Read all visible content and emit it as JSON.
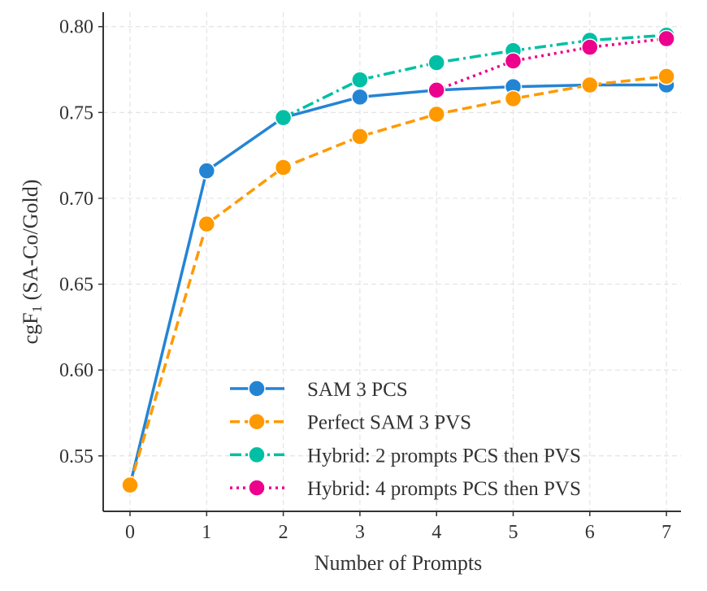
{
  "chart_data": {
    "type": "line",
    "title": "",
    "xlabel": "Number of Prompts",
    "ylabel_main": "cgF",
    "ylabel_sub": "1",
    "ylabel_rest": " (SA-Co/Gold)",
    "xlim": [
      -0.35,
      7.19
    ],
    "ylim": [
      0.5177,
      0.8084
    ],
    "xticks": [
      0,
      1,
      2,
      3,
      4,
      5,
      6,
      7
    ],
    "yticks": [
      0.55,
      0.6,
      0.65,
      0.7,
      0.75,
      0.8
    ],
    "ytick_labels": [
      "0.55",
      "0.60",
      "0.65",
      "0.70",
      "0.75",
      "0.80"
    ],
    "grid": true,
    "legend_position": "lower-right",
    "series": [
      {
        "name": "SAM 3 PCS",
        "color": "#2484d4",
        "dash": "solid",
        "x": [
          0,
          1,
          2,
          3,
          4,
          5,
          6,
          7
        ],
        "values": [
          0.533,
          0.716,
          0.747,
          0.759,
          0.763,
          0.765,
          0.766,
          0.766
        ]
      },
      {
        "name": "Perfect SAM 3 PVS",
        "color": "#ff9900",
        "dash": "dashed",
        "x": [
          0,
          1,
          2,
          3,
          4,
          5,
          6,
          7
        ],
        "values": [
          0.533,
          0.685,
          0.718,
          0.736,
          0.749,
          0.758,
          0.766,
          0.771
        ]
      },
      {
        "name": "Hybrid: 2 prompts PCS then PVS",
        "color": "#00bfa5",
        "dash": "dashdot",
        "x": [
          2,
          3,
          4,
          5,
          6,
          7
        ],
        "values": [
          0.747,
          0.769,
          0.779,
          0.786,
          0.792,
          0.795
        ]
      },
      {
        "name": "Hybrid: 4 prompts PCS then PVS",
        "color": "#ec008c",
        "dash": "dotted",
        "x": [
          4,
          5,
          6,
          7
        ],
        "values": [
          0.763,
          0.78,
          0.788,
          0.793
        ]
      }
    ]
  }
}
